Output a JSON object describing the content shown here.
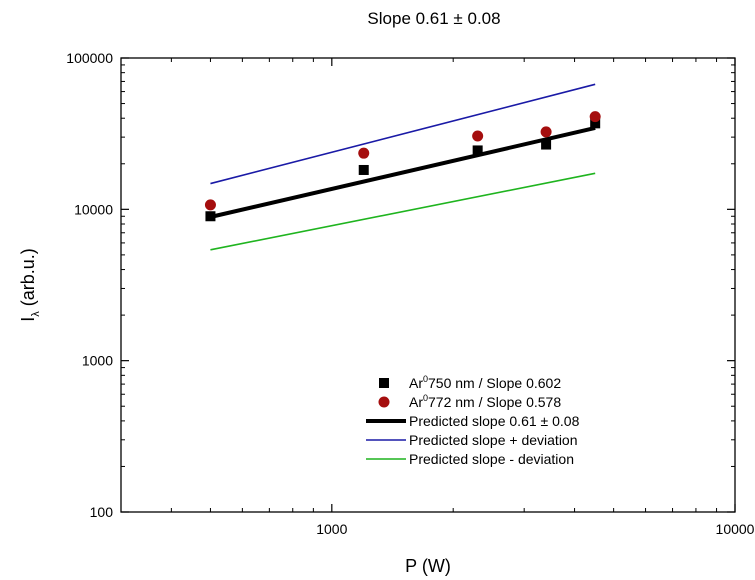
{
  "chart_data": {
    "type": "scatter",
    "title": "Slope 0.61 ± 0.08",
    "xlabel": "P (W)",
    "ylabel_main": "I",
    "ylabel_sub": "λ",
    "ylabel_rest": " (arb.u.)",
    "xscale": "log",
    "yscale": "log",
    "xlim": [
      300,
      10000
    ],
    "ylim": [
      100,
      100000
    ],
    "x_ticks": [
      {
        "value": 1000,
        "label": "1000"
      },
      {
        "value": 10000,
        "label": "10000"
      }
    ],
    "y_ticks": [
      {
        "value": 100,
        "label": "100"
      },
      {
        "value": 1000,
        "label": "1000"
      },
      {
        "value": 10000,
        "label": "10000"
      },
      {
        "value": 100000,
        "label": "100000"
      }
    ],
    "grid": false,
    "legend_position": "bottom-right",
    "series": [
      {
        "kind": "points",
        "marker": "square",
        "color": "#000000",
        "legend_sup": "0",
        "legend_pre": "Ar",
        "legend_post": "750 nm / Slope 0.602",
        "x": [
          500,
          1200,
          2300,
          3400,
          4500
        ],
        "y": [
          9000,
          18200,
          24500,
          26800,
          37000
        ]
      },
      {
        "kind": "points",
        "marker": "circle",
        "color": "#a50e0e",
        "legend_sup": "0",
        "legend_pre": "Ar",
        "legend_post": "772 nm / Slope 0.578",
        "x": [
          500,
          1200,
          2300,
          3400,
          4500
        ],
        "y": [
          10700,
          23500,
          30500,
          32500,
          41000
        ]
      },
      {
        "kind": "line",
        "color": "#000000",
        "weight": "thick",
        "legend": "Predicted slope 0.61 ± 0.08",
        "x": [
          500,
          4500
        ],
        "y": [
          8900,
          34500
        ]
      },
      {
        "kind": "line",
        "color": "#1a1aa6",
        "weight": "thin",
        "legend": "Predicted slope + deviation",
        "x": [
          500,
          4500
        ],
        "y": [
          14800,
          67000
        ]
      },
      {
        "kind": "line",
        "color": "#1fb41f",
        "weight": "thin",
        "legend": "Predicted slope - deviation",
        "x": [
          500,
          4500
        ],
        "y": [
          5400,
          17300
        ]
      }
    ]
  }
}
